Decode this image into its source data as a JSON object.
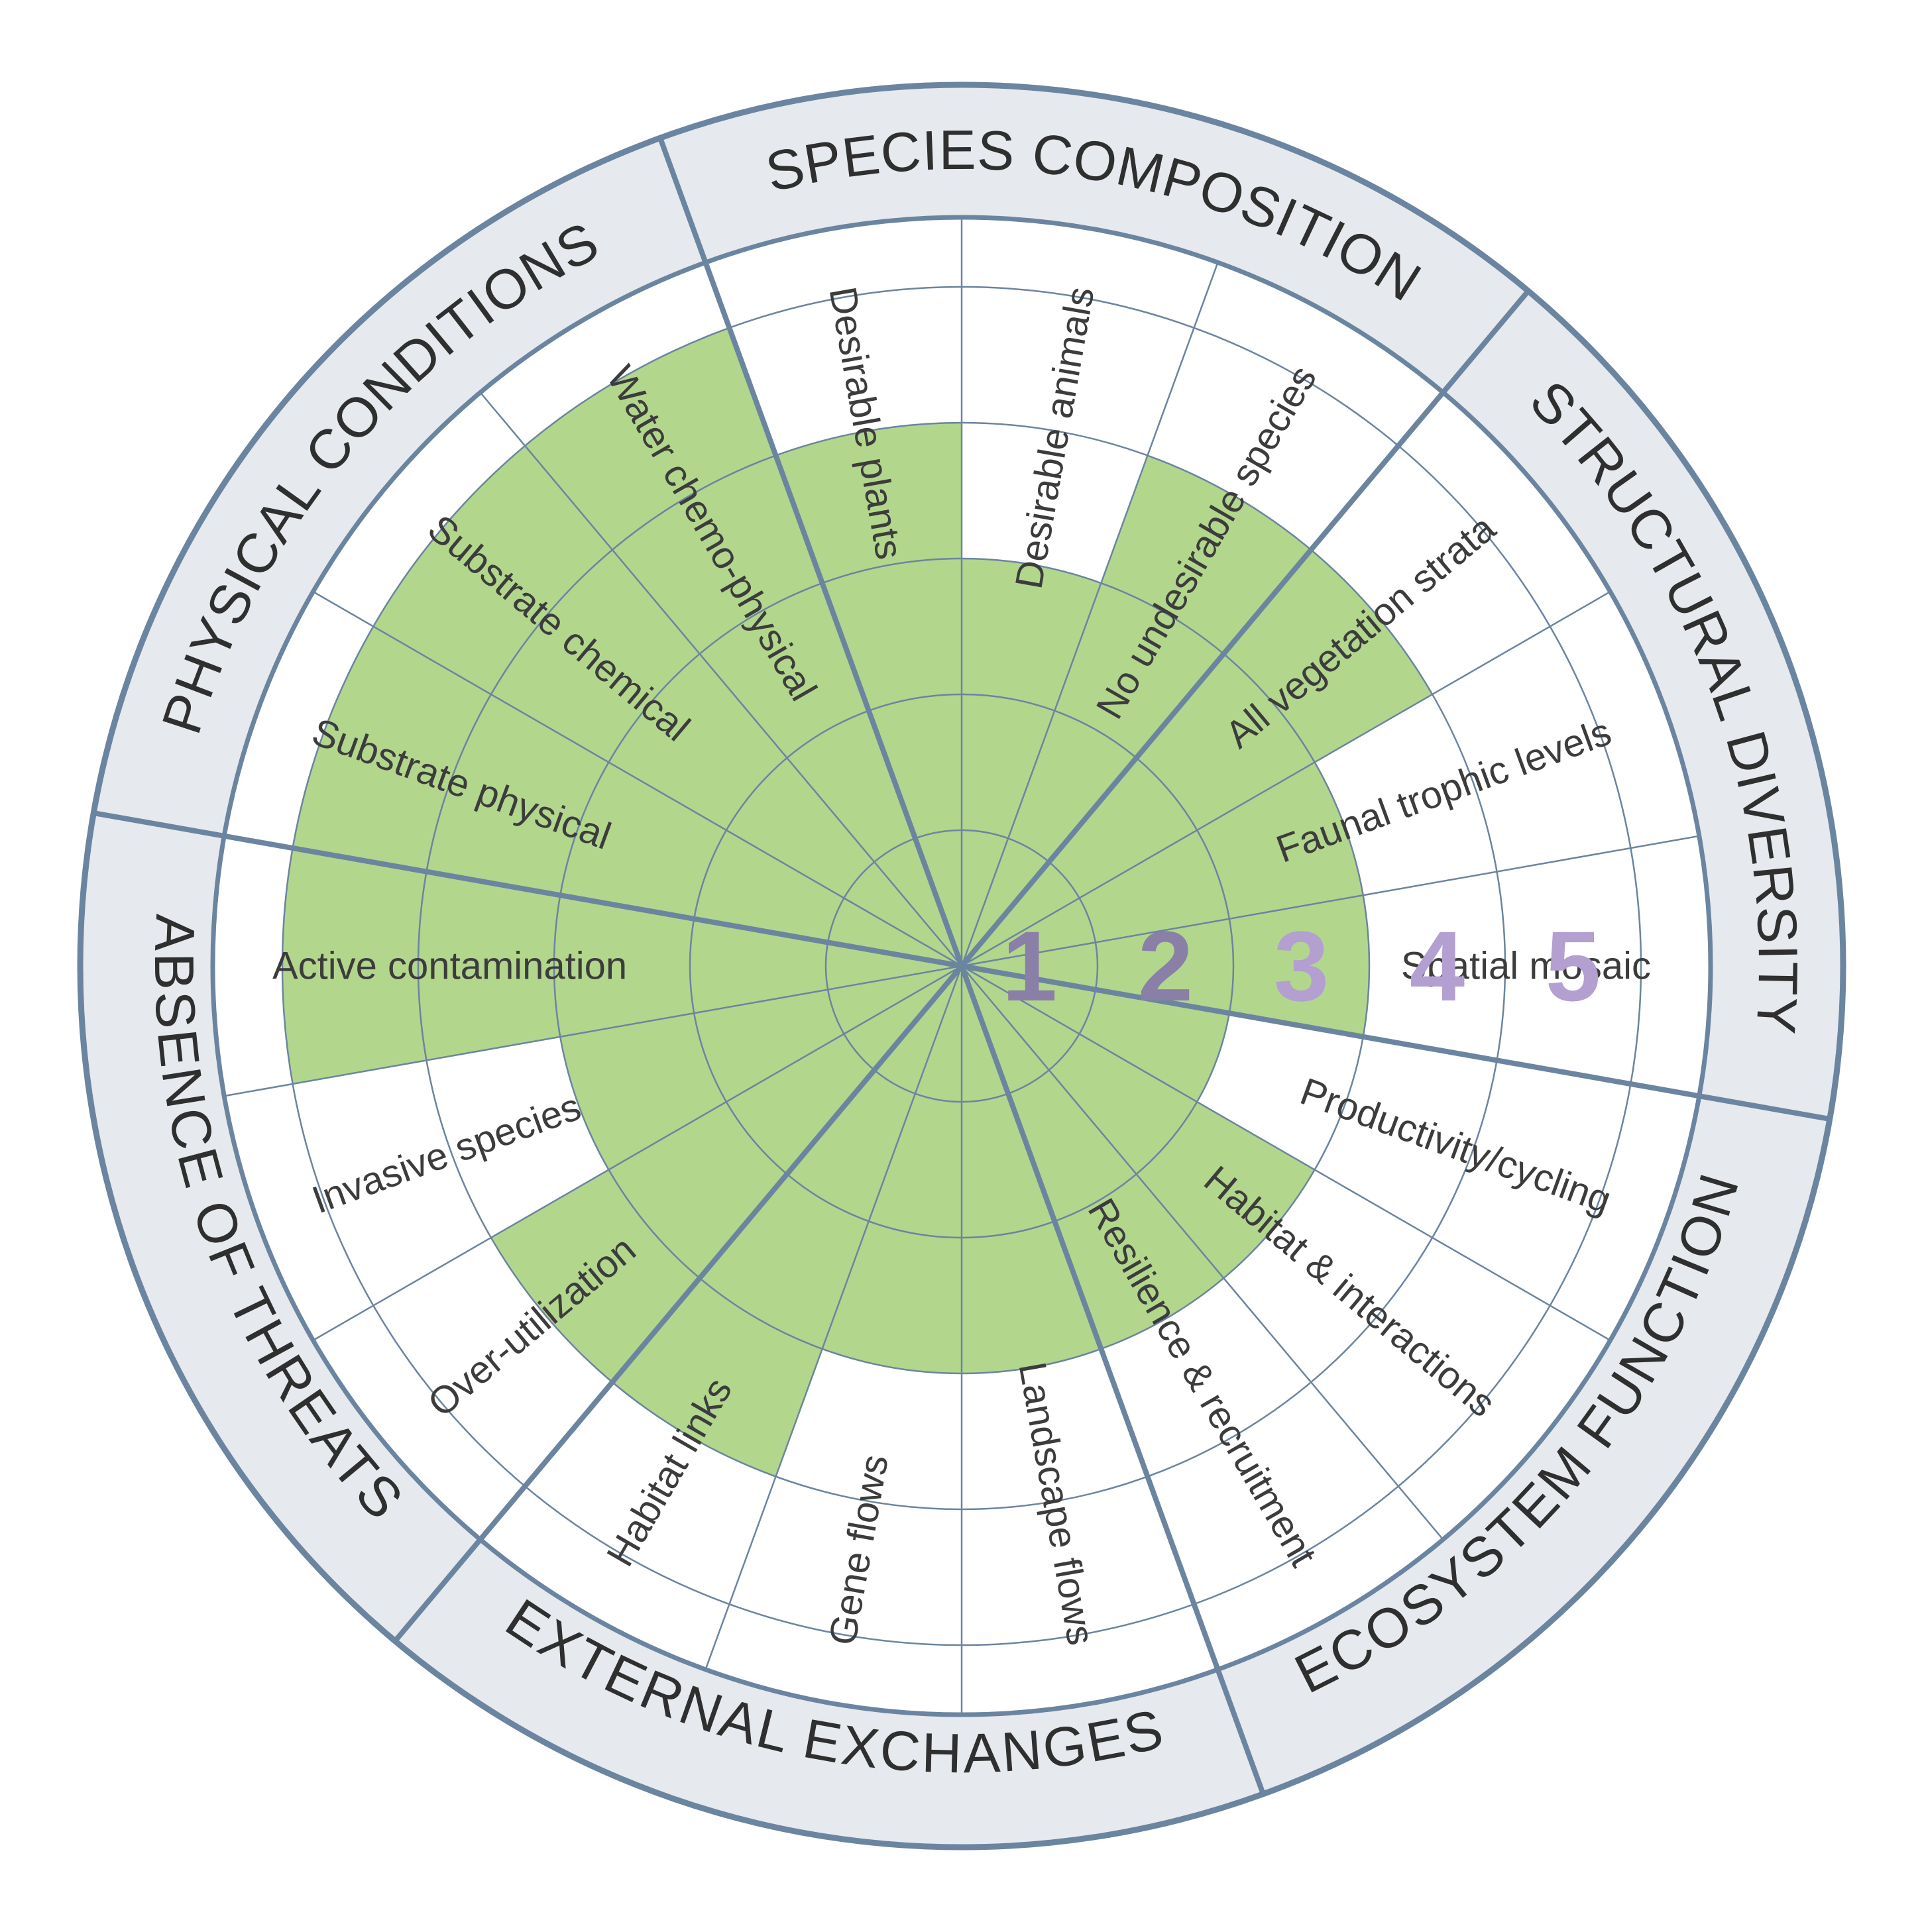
{
  "colors": {
    "filled": "#b3d68d",
    "empty": "#ffffff",
    "band": "#e6e9ee",
    "line": "#6b85a0",
    "text": "#3c3c3c",
    "scale_dark": "#8a7fa6",
    "scale_light": "#b39fd0"
  },
  "scale": [
    "1",
    "2",
    "3",
    "4",
    "5"
  ],
  "categories": [
    {
      "name": "SPECIES COMPOSITION"
    },
    {
      "name": "STRUCTURAL DIVERSITY"
    },
    {
      "name": "ECOSYSTEM FUNCTION"
    },
    {
      "name": "EXTERNAL EXCHANGES"
    },
    {
      "name": "ABSENCE OF THREATS"
    },
    {
      "name": "PHYSICAL CONDITIONS"
    }
  ],
  "attributes": [
    {
      "name": "Desirable plants",
      "category": "SPECIES COMPOSITION",
      "score": 4
    },
    {
      "name": "Desirable animals",
      "category": "SPECIES COMPOSITION",
      "score": 3
    },
    {
      "name": "No undesirable species",
      "category": "SPECIES COMPOSITION",
      "score": 4
    },
    {
      "name": "All vegetation strata",
      "category": "STRUCTURAL DIVERSITY",
      "score": 4
    },
    {
      "name": "Faunal trophic levels",
      "category": "STRUCTURAL DIVERSITY",
      "score": 3
    },
    {
      "name": "Spatial mosaic",
      "category": "STRUCTURAL DIVERSITY",
      "score": 3
    },
    {
      "name": "Productivity/cycling",
      "category": "ECOSYSTEM FUNCTION",
      "score": 2
    },
    {
      "name": "Habitat & interactions",
      "category": "ECOSYSTEM FUNCTION",
      "score": 3
    },
    {
      "name": "Resilience & recruitment",
      "category": "ECOSYSTEM FUNCTION",
      "score": 3
    },
    {
      "name": "Landscape flows",
      "category": "EXTERNAL EXCHANGES",
      "score": 3
    },
    {
      "name": "Gene flows",
      "category": "EXTERNAL EXCHANGES",
      "score": 3
    },
    {
      "name": "Habitat links",
      "category": "EXTERNAL EXCHANGES",
      "score": 4
    },
    {
      "name": "Over-utilization",
      "category": "ABSENCE OF THREATS",
      "score": 4
    },
    {
      "name": "Invasive species",
      "category": "ABSENCE OF THREATS",
      "score": 3
    },
    {
      "name": "Active contamination",
      "category": "ABSENCE OF THREATS",
      "score": 5
    },
    {
      "name": "Substrate physical",
      "category": "PHYSICAL CONDITIONS",
      "score": 5
    },
    {
      "name": "Substrate chemical",
      "category": "PHYSICAL CONDITIONS",
      "score": 5
    },
    {
      "name": "Water chemo-physical",
      "category": "PHYSICAL CONDITIONS",
      "score": 5
    }
  ]
}
